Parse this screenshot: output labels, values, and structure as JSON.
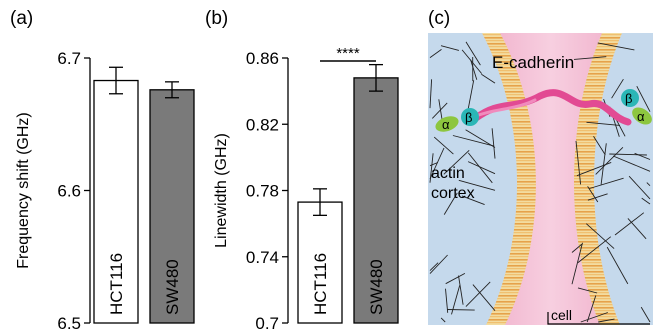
{
  "panel_labels": [
    "(a)",
    "(b)",
    "(c)"
  ],
  "chart_data": [
    {
      "type": "bar",
      "panel": "(a)",
      "ylabel": "Frequency shift (GHz)",
      "ylim": [
        6.5,
        6.7
      ],
      "yticks": [
        "6.5",
        "6.6",
        "6.7"
      ],
      "categories": [
        "HCT116",
        "SW480"
      ],
      "values": [
        6.683,
        6.676
      ],
      "errors": [
        0.01,
        0.006
      ],
      "colors": [
        "#ffffff",
        "#7a7a7a"
      ]
    },
    {
      "type": "bar",
      "panel": "(b)",
      "ylabel": "Linewidth (GHz)",
      "ylim": [
        0.7,
        0.86
      ],
      "yticks": [
        "0.7",
        "0.74",
        "0.78",
        "0.82",
        "0.86"
      ],
      "categories": [
        "HCT116",
        "SW480"
      ],
      "values": [
        0.773,
        0.848
      ],
      "errors": [
        0.008,
        0.008
      ],
      "colors": [
        "#ffffff",
        "#7a7a7a"
      ],
      "significance": "****"
    }
  ],
  "diagram": {
    "protein_label": "E-cadherin",
    "beta_label": "β",
    "alpha_label": "α",
    "cortex_label_line1": "actin",
    "cortex_label_line2": "cortex",
    "scale_label": "cell"
  }
}
